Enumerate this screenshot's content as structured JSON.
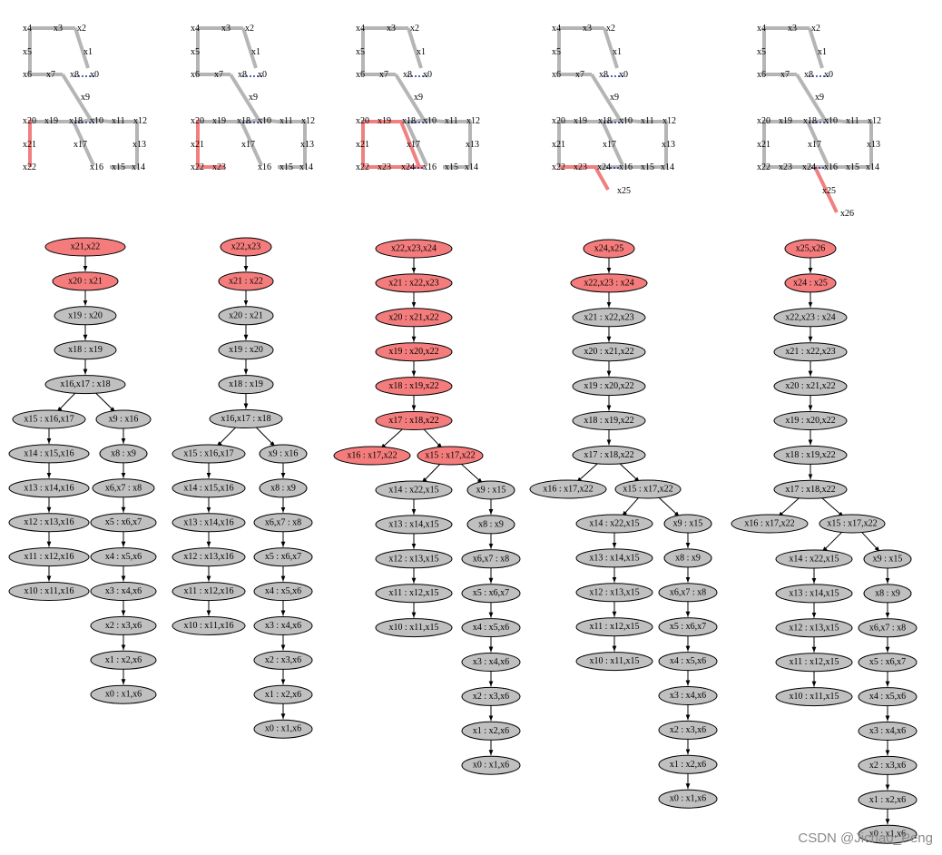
{
  "colors": {
    "edge": "#b5b5b5",
    "highlight": "#f08080",
    "dotted": "#1f2f9f",
    "node_fill": "#c0c0c0",
    "node_fill_active": "#f47c7c",
    "node_stroke": "#000000"
  },
  "watermark": "CSDN @Jichao_Peng",
  "panels": [
    {
      "labels": [
        "x4",
        "x3",
        "x2",
        "x5",
        "x1",
        "x6",
        "x7",
        "x8",
        "x0",
        "x9",
        "x20",
        "x19",
        "x18",
        "x10",
        "x11",
        "x12",
        "x21",
        "x17",
        "x13",
        "x22",
        "x16",
        "x15",
        "x14"
      ],
      "tree": [
        {
          "label": "x21,x22",
          "active": true
        },
        {
          "label": "x20 : x21",
          "active": true
        },
        {
          "label": "x19 : x20"
        },
        {
          "label": "x18 : x19"
        },
        {
          "label": "x16,x17 : x18"
        },
        {
          "label": "x15 : x16,x17"
        },
        {
          "label": "x14 : x15,x16"
        },
        {
          "label": "x13 : x14,x16"
        },
        {
          "label": "x12 : x13,x16"
        },
        {
          "label": "x11 : x12,x16"
        },
        {
          "label": "x10 : x11,x16"
        },
        {
          "label": "x9 : x16"
        },
        {
          "label": "x8 : x9"
        },
        {
          "label": "x6,x7 : x8"
        },
        {
          "label": "x5 : x6,x7"
        },
        {
          "label": "x4 : x5,x6"
        },
        {
          "label": "x3 : x4,x6"
        },
        {
          "label": "x2 : x3,x6"
        },
        {
          "label": "x1 : x2,x6"
        },
        {
          "label": "x0 : x1,x6"
        }
      ]
    },
    {
      "labels": [
        "x4",
        "x3",
        "x2",
        "x5",
        "x1",
        "x6",
        "x7",
        "x8",
        "x0",
        "x9",
        "x20",
        "x19",
        "x18",
        "x10",
        "x11",
        "x12",
        "x21",
        "x17",
        "x13",
        "x22",
        "x23",
        "x16",
        "x15",
        "x14"
      ],
      "tree": [
        {
          "label": "x22,x23",
          "active": true
        },
        {
          "label": "x21 : x22",
          "active": true
        },
        {
          "label": "x20 : x21"
        },
        {
          "label": "x19 : x20"
        },
        {
          "label": "x18 : x19"
        },
        {
          "label": "x16,x17 : x18"
        },
        {
          "label": "x15 : x16,x17"
        },
        {
          "label": "x14 : x15,x16"
        },
        {
          "label": "x13 : x14,x16"
        },
        {
          "label": "x12 : x13,x16"
        },
        {
          "label": "x11 : x12,x16"
        },
        {
          "label": "x10 : x11,x16"
        },
        {
          "label": "x9 : x16"
        },
        {
          "label": "x8 : x9"
        },
        {
          "label": "x6,x7 : x8"
        },
        {
          "label": "x5 : x6,x7"
        },
        {
          "label": "x4 : x5,x6"
        },
        {
          "label": "x3 : x4,x6"
        },
        {
          "label": "x2 : x3,x6"
        },
        {
          "label": "x1 : x2,x6"
        },
        {
          "label": "x0 : x1,x6"
        }
      ]
    },
    {
      "labels": [
        "x4",
        "x3",
        "x2",
        "x5",
        "x1",
        "x6",
        "x7",
        "x8",
        "x0",
        "x9",
        "x20",
        "x19",
        "x18",
        "x10",
        "x11",
        "x12",
        "x21",
        "x17",
        "x13",
        "x22",
        "x23",
        "x24",
        "x16",
        "x15",
        "x14"
      ],
      "tree": [
        {
          "label": "x22,x23,x24",
          "active": true
        },
        {
          "label": "x21 : x22,x23",
          "active": true
        },
        {
          "label": "x20 : x21,x22",
          "active": true
        },
        {
          "label": "x19 : x20,x22",
          "active": true
        },
        {
          "label": "x18 : x19,x22",
          "active": true
        },
        {
          "label": "x17 : x18,x22",
          "active": true
        },
        {
          "label": "x16 : x17,x22",
          "active": true
        },
        {
          "label": "x15 : x17,x22",
          "active": true
        },
        {
          "label": "x14 : x22,x15"
        },
        {
          "label": "x13 : x14,x15"
        },
        {
          "label": "x12 : x13,x15"
        },
        {
          "label": "x11 : x12,x15"
        },
        {
          "label": "x10 : x11,x15"
        },
        {
          "label": "x9 : x15"
        },
        {
          "label": "x8 : x9"
        },
        {
          "label": "x6,x7 : x8"
        },
        {
          "label": "x5 : x6,x7"
        },
        {
          "label": "x4 : x5,x6"
        },
        {
          "label": "x3 : x4,x6"
        },
        {
          "label": "x2 : x3,x6"
        },
        {
          "label": "x1 : x2,x6"
        },
        {
          "label": "x0 : x1,x6"
        }
      ]
    },
    {
      "labels": [
        "x4",
        "x3",
        "x2",
        "x5",
        "x1",
        "x6",
        "x7",
        "x8",
        "x0",
        "x9",
        "x20",
        "x19",
        "x18",
        "x10",
        "x11",
        "x12",
        "x21",
        "x17",
        "x13",
        "x22",
        "x23",
        "x24",
        "x16",
        "x15",
        "x14",
        "x25"
      ],
      "tree": [
        {
          "label": "x24,x25",
          "active": true
        },
        {
          "label": "x22,x23 : x24",
          "active": true
        },
        {
          "label": "x21 : x22,x23"
        },
        {
          "label": "x20 : x21,x22"
        },
        {
          "label": "x19 : x20,x22"
        },
        {
          "label": "x18 : x19,x22"
        },
        {
          "label": "x17 : x18,x22"
        },
        {
          "label": "x16 : x17,x22"
        },
        {
          "label": "x15 : x17,x22"
        },
        {
          "label": "x14 : x22,x15"
        },
        {
          "label": "x13 : x14,x15"
        },
        {
          "label": "x12 : x13,x15"
        },
        {
          "label": "x11 : x12,x15"
        },
        {
          "label": "x10 : x11,x15"
        },
        {
          "label": "x9 : x15"
        },
        {
          "label": "x8 : x9"
        },
        {
          "label": "x6,x7 : x8"
        },
        {
          "label": "x5 : x6,x7"
        },
        {
          "label": "x4 : x5,x6"
        },
        {
          "label": "x3 : x4,x6"
        },
        {
          "label": "x2 : x3,x6"
        },
        {
          "label": "x1 : x2,x6"
        },
        {
          "label": "x0 : x1,x6"
        }
      ]
    },
    {
      "labels": [
        "x4",
        "x3",
        "x2",
        "x5",
        "x1",
        "x6",
        "x7",
        "x8",
        "x0",
        "x9",
        "x20",
        "x19",
        "x18",
        "x10",
        "x11",
        "x12",
        "x21",
        "x17",
        "x13",
        "x22",
        "x23",
        "x24",
        "x16",
        "x15",
        "x14",
        "x25",
        "x26"
      ],
      "tree": [
        {
          "label": "x25,x26",
          "active": true
        },
        {
          "label": "x24 : x25",
          "active": true
        },
        {
          "label": "x22,x23 : x24"
        },
        {
          "label": "x21 : x22,x23"
        },
        {
          "label": "x20 : x21,x22"
        },
        {
          "label": "x19 : x20,x22"
        },
        {
          "label": "x18 : x19,x22"
        },
        {
          "label": "x17 : x18,x22"
        },
        {
          "label": "x16 : x17,x22"
        },
        {
          "label": "x15 : x17,x22"
        },
        {
          "label": "x14 : x22,x15"
        },
        {
          "label": "x13 : x14,x15"
        },
        {
          "label": "x12 : x13,x15"
        },
        {
          "label": "x11 : x12,x15"
        },
        {
          "label": "x10 : x11,x15"
        },
        {
          "label": "x9 : x15"
        },
        {
          "label": "x8 : x9"
        },
        {
          "label": "x6,x7 : x8"
        },
        {
          "label": "x5 : x6,x7"
        },
        {
          "label": "x4 : x5,x6"
        },
        {
          "label": "x3 : x4,x6"
        },
        {
          "label": "x2 : x3,x6"
        },
        {
          "label": "x1 : x2,x6"
        },
        {
          "label": "x0 : x1,x6"
        }
      ]
    }
  ]
}
